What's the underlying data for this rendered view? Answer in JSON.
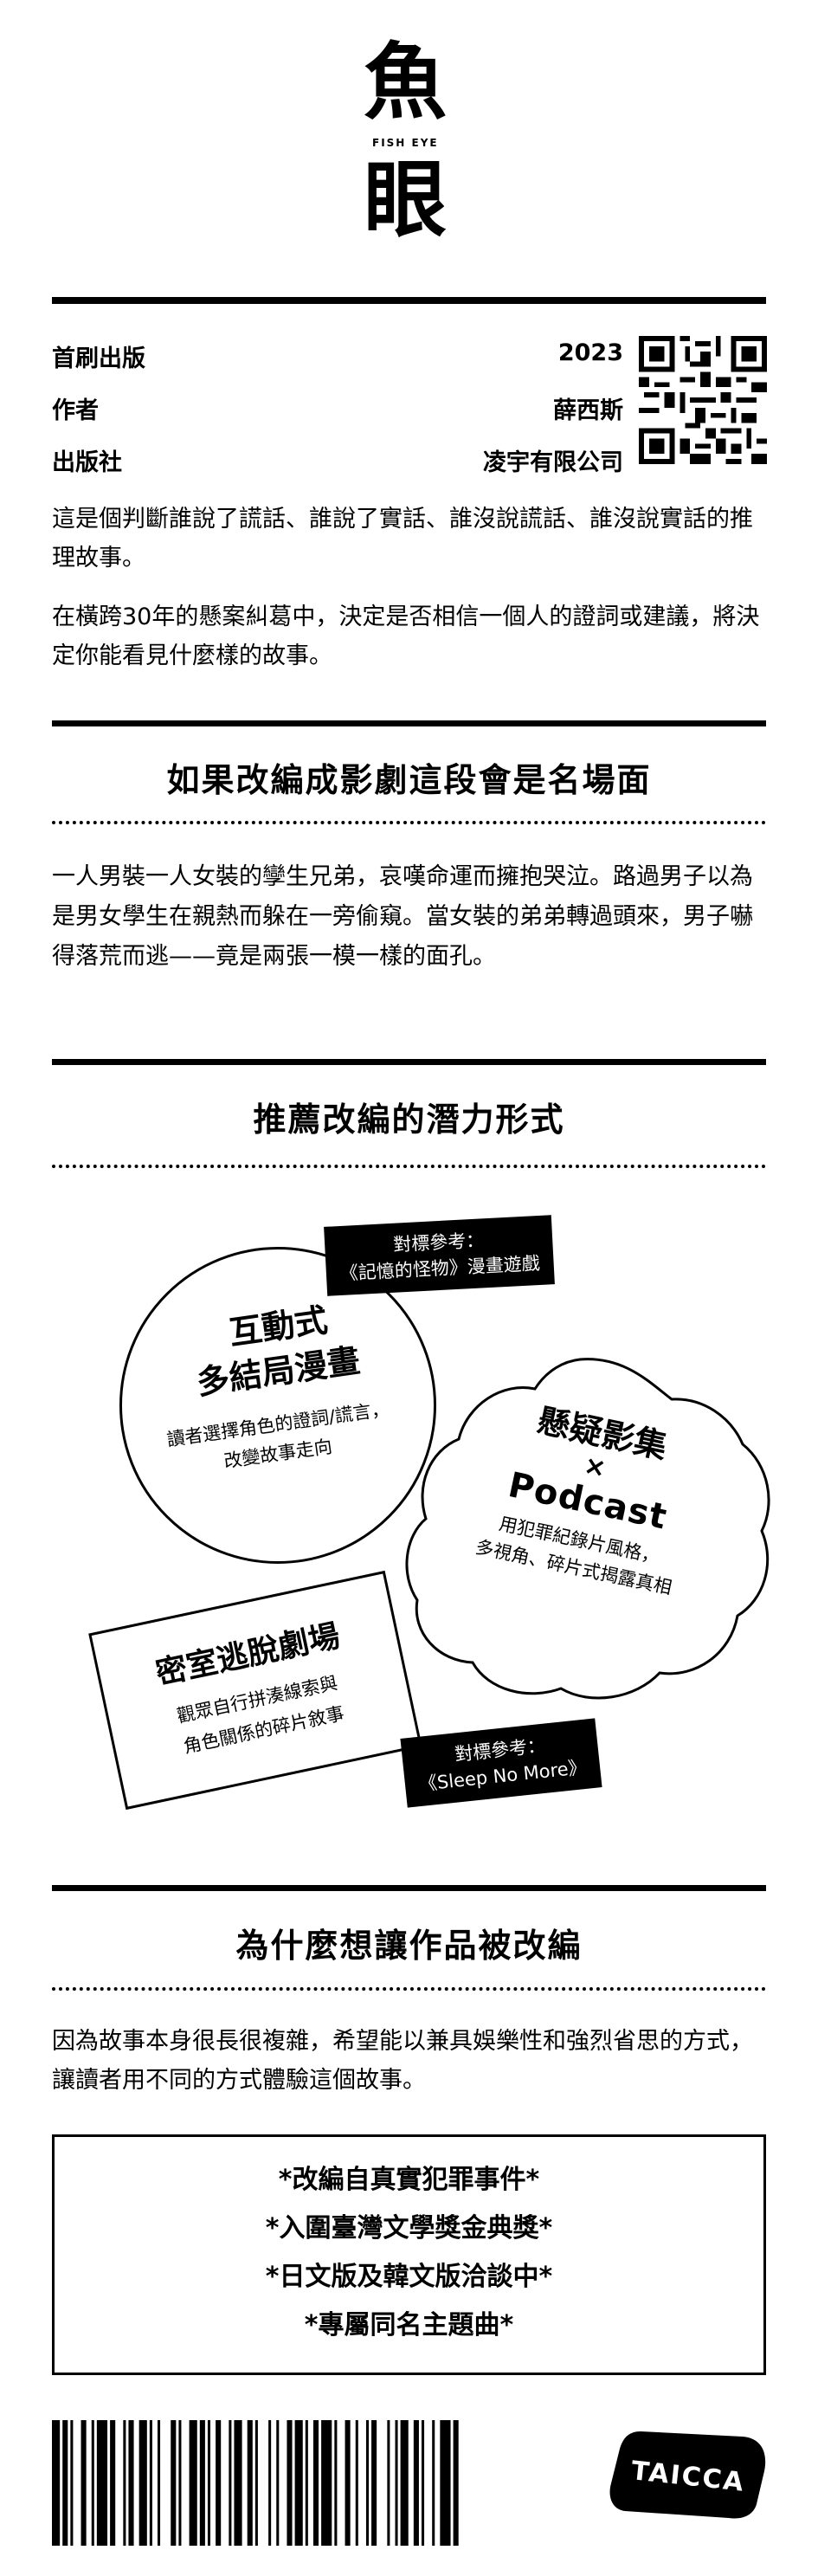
{
  "logo": {
    "top": "魚",
    "subtitle": "FISH EYE",
    "bottom": "眼"
  },
  "meta": [
    {
      "label": "首刷出版",
      "value": "2023"
    },
    {
      "label": "作者",
      "value": "薛西斯"
    },
    {
      "label": "出版社",
      "value": "凌宇有限公司"
    }
  ],
  "qr_icon": "qr-code",
  "intro": [
    "這是個判斷誰說了謊話、誰說了實話、誰沒說謊話、誰沒說實話的推理故事。",
    "在橫跨30年的懸案糾葛中，決定是否相信一個人的證詞或建議，將決定你能看見什麼樣的故事。"
  ],
  "section1": {
    "title": "如果改編成影劇這段會是名場面",
    "body": "一人男裝一人女裝的孿生兄弟，哀嘆命運而擁抱哭泣。路過男子以為是男女學生在親熱而躲在一旁偷窺。當女裝的弟弟轉過頭來，男子嚇得落荒而逃——竟是兩張一模一樣的面孔。"
  },
  "section2": {
    "title": "推薦改編的潛力形式",
    "circle": {
      "title1": "互動式",
      "title2": "多結局漫畫",
      "desc1": "讀者選擇角色的證詞/謊言，",
      "desc2": "改變故事走向"
    },
    "tag1": {
      "line1": "對標參考：",
      "line2": "《記憶的怪物》漫畫遊戲"
    },
    "blob": {
      "title": "懸疑影集",
      "x": "×",
      "podcast": "Podcast",
      "desc1": "用犯罪紀錄片風格，",
      "desc2": "多視角、碎片式揭露真相"
    },
    "box": {
      "title": "密室逃脫劇場",
      "desc1": "觀眾自行拼湊線索與",
      "desc2": "角色關係的碎片敘事"
    },
    "tag2": {
      "line1": "對標參考：",
      "line2": "《Sleep No More》"
    }
  },
  "section3": {
    "title": "為什麼想讓作品被改編",
    "body": "因為故事本身很長很複雜，希望能以兼具娛樂性和強烈省思的方式，讓讀者用不同的方式體驗這個故事。"
  },
  "highlights": [
    "*改編自真實犯罪事件*",
    "*入圍臺灣文學獎金典獎*",
    "*日文版及韓文版洽談中*",
    "*專屬同名主題曲*"
  ],
  "footer": {
    "barcode_icon": "barcode",
    "logo": "TAICCA"
  }
}
